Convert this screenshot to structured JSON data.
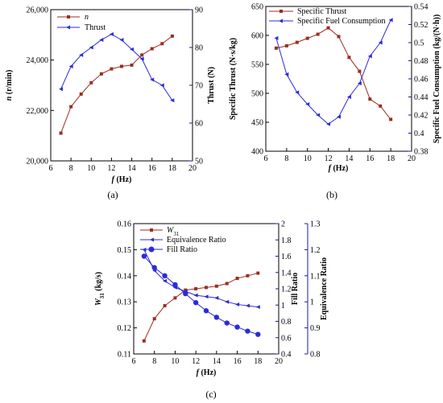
{
  "colors": {
    "red": "#9b2d20",
    "blue": "#2b2bd9",
    "axis_blue": "#1a1aa8",
    "axis": "#000000"
  },
  "chart_data": [
    {
      "panel": "(a)",
      "type": "line",
      "xlabel_var": "f",
      "xlabel_unit": " (Hz)",
      "xlim": [
        6,
        20
      ],
      "xticks": [
        6,
        8,
        10,
        12,
        14,
        16,
        18,
        20
      ],
      "y_axes": [
        {
          "label_var": "n",
          "label_unit": " (r/min)",
          "lim": [
            20000,
            26000
          ],
          "ticks": [
            20000,
            22000,
            24000,
            26000
          ],
          "tick_labels": [
            "20,000",
            "22,000",
            "24,000",
            "26,000"
          ]
        },
        {
          "label": "Thrust (N)",
          "lim": [
            50,
            90
          ],
          "ticks": [
            50,
            60,
            70,
            80,
            90
          ],
          "tick_labels": [
            "50",
            "60",
            "70",
            "80",
            "90"
          ]
        }
      ],
      "series": [
        {
          "name": "n",
          "axis": 0,
          "marker": "square",
          "color": "red",
          "x": [
            7,
            8,
            9,
            10,
            11,
            12,
            13,
            14,
            15,
            16,
            17,
            18
          ],
          "y": [
            21100,
            22150,
            22650,
            23100,
            23450,
            23650,
            23750,
            23800,
            24200,
            24450,
            24650,
            24950
          ]
        },
        {
          "name": "Thrust",
          "axis": 1,
          "marker": "triangle",
          "color": "blue",
          "x": [
            7,
            8,
            9,
            10,
            11,
            12,
            13,
            14,
            15,
            16,
            17,
            18
          ],
          "y": [
            69,
            75,
            78,
            80,
            82,
            83.5,
            82,
            79.5,
            77,
            71.5,
            70,
            66
          ]
        }
      ],
      "legend": "top-left"
    },
    {
      "panel": "(b)",
      "type": "line",
      "xlabel_var": "f",
      "xlabel_unit": " (Hz)",
      "xlim": [
        6,
        20
      ],
      "xticks": [
        6,
        8,
        10,
        12,
        14,
        16,
        18,
        20
      ],
      "y_axes": [
        {
          "label": "Specific Thrust (N·s/kg)",
          "lim": [
            400,
            650
          ],
          "ticks": [
            400,
            450,
            500,
            550,
            600,
            650
          ],
          "tick_labels": [
            "400",
            "450",
            "500",
            "550",
            "600",
            "650"
          ]
        },
        {
          "label": "Specific Fuel Consumption (kg/(N·h))",
          "lim": [
            0.38,
            0.54
          ],
          "ticks": [
            0.38,
            0.4,
            0.42,
            0.44,
            0.46,
            0.48,
            0.5,
            0.52,
            0.54
          ],
          "tick_labels": [
            "0.38",
            "0.4",
            "0.42",
            "0.44",
            "0.46",
            "0.48",
            "0.5",
            "0.52",
            "0.54"
          ]
        }
      ],
      "series": [
        {
          "name": "Specific Thrust",
          "axis": 0,
          "marker": "square",
          "color": "red",
          "x": [
            7,
            8,
            9,
            10,
            11,
            12,
            13,
            14,
            15,
            16,
            17,
            18
          ],
          "y": [
            578,
            582,
            588,
            595,
            602,
            613,
            598,
            562,
            538,
            490,
            478,
            455
          ]
        },
        {
          "name": "Specific Fuel Consumption",
          "axis": 1,
          "marker": "triangle",
          "color": "blue",
          "x": [
            7,
            8,
            9,
            10,
            11,
            12,
            13,
            14,
            15,
            16,
            17,
            18
          ],
          "y": [
            0.505,
            0.465,
            0.445,
            0.432,
            0.42,
            0.41,
            0.418,
            0.44,
            0.455,
            0.485,
            0.5,
            0.525
          ]
        }
      ],
      "legend": "top-left"
    },
    {
      "panel": "(c)",
      "type": "line",
      "xlabel_var": "f",
      "xlabel_unit": " (Hz)",
      "xlim": [
        6,
        20
      ],
      "xticks": [
        6,
        8,
        10,
        12,
        14,
        16,
        18,
        20
      ],
      "y_axes": [
        {
          "label_var": "W",
          "label_sub": "31",
          "label_unit": " (kg/s)",
          "lim": [
            0.11,
            0.16
          ],
          "ticks": [
            0.11,
            0.12,
            0.13,
            0.14,
            0.15,
            0.16
          ],
          "tick_labels": [
            "0.11",
            "0.12",
            "0.13",
            "0.14",
            "0.15",
            "0.16"
          ]
        },
        {
          "label": "Fill Ratio",
          "lim": [
            0.4,
            2.0
          ],
          "ticks": [
            0.4,
            0.6,
            0.8,
            1.0,
            1.2,
            1.4,
            1.6,
            1.8,
            2.0
          ],
          "tick_labels": [
            "0.4",
            "0.6",
            "0.8",
            "1",
            "1.2",
            "1.4",
            "1.6",
            "1.8",
            "2"
          ]
        },
        {
          "label": "Equivalence Ratio",
          "lim": [
            0.8,
            1.3
          ],
          "ticks": [
            0.8,
            0.9,
            1.0,
            1.1,
            1.2,
            1.3
          ],
          "tick_labels": [
            "0.8",
            "0.9",
            "1",
            "1.1",
            "1.2",
            "1.3"
          ]
        }
      ],
      "series": [
        {
          "name": "W",
          "name_sub": "31",
          "axis": 0,
          "marker": "square",
          "color": "red",
          "x": [
            7,
            8,
            9,
            10,
            11,
            12,
            13,
            14,
            15,
            16,
            17,
            18
          ],
          "y": [
            0.115,
            0.1235,
            0.1285,
            0.1315,
            0.1345,
            0.135,
            0.1355,
            0.136,
            0.137,
            0.139,
            0.14,
            0.141
          ]
        },
        {
          "name": "Equivalence Ratio",
          "axis": 2,
          "marker": "triangle",
          "color": "blue",
          "x": [
            7,
            8,
            9,
            10,
            11,
            12,
            13,
            14,
            15,
            16,
            17,
            18
          ],
          "y": [
            1.2,
            1.12,
            1.08,
            1.055,
            1.04,
            1.025,
            1.02,
            1.015,
            1.0,
            0.99,
            0.985,
            0.98
          ]
        },
        {
          "name": "Fill Ratio",
          "axis": 1,
          "marker": "circle",
          "color": "blue",
          "x": [
            7,
            8,
            9,
            10,
            11,
            12,
            13,
            14,
            15,
            16,
            17,
            18
          ],
          "y": [
            1.6,
            1.46,
            1.36,
            1.25,
            1.14,
            1.03,
            0.93,
            0.85,
            0.78,
            0.73,
            0.68,
            0.64
          ]
        }
      ],
      "legend": "top-left"
    }
  ]
}
